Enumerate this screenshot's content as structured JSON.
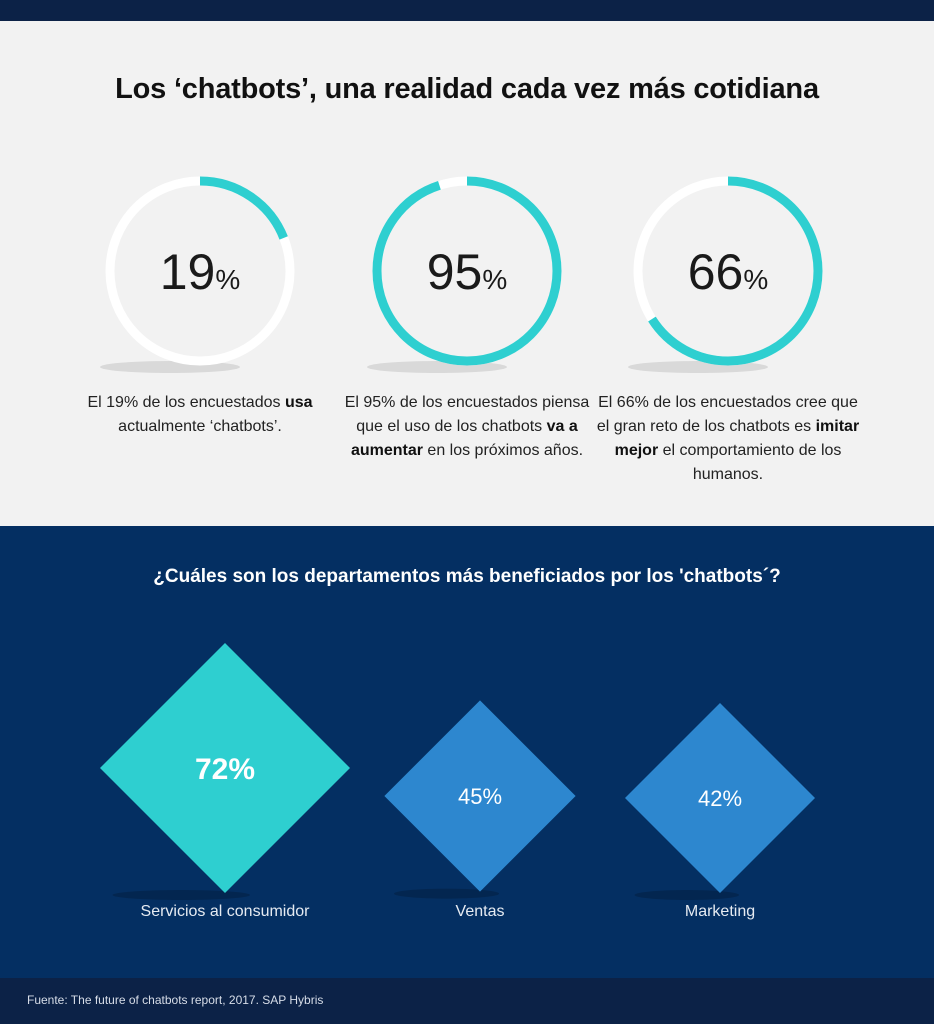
{
  "title": "Los ‘chatbots’, una realidad cada vez más cotidiana",
  "stats": [
    {
      "value_text": "19",
      "percent_sign": "%",
      "desc": [
        "El 19% de los encuestados ",
        {
          "b": "usa"
        },
        " actualmente ‘chatbots’."
      ]
    },
    {
      "value_text": "95",
      "percent_sign": "%",
      "desc": [
        "El 95% de los encuestados piensa que el uso de los chatbots ",
        {
          "b": "va a aumentar"
        },
        " en los próximos años."
      ]
    },
    {
      "value_text": "66",
      "percent_sign": "%",
      "desc": [
        "El 66% de los encuestados cree que el gran reto de los chatbots es ",
        {
          "b": "imitar mejor"
        },
        " el comportamiento de los humanos."
      ]
    }
  ],
  "subtitle": "¿Cuáles son los departamentos más beneficiados por los 'chatbots´?",
  "source": "Fuente: The future of chatbots report, 2017. SAP Hybris",
  "colors": {
    "accent": "#2ecfd0",
    "ring_track": "#ffffff",
    "diamond_secondary": "#2d87cf",
    "dark_navy": "#042f62"
  },
  "chart_data": [
    {
      "type": "donut",
      "series": [
        {
          "values": [
            19,
            95,
            66
          ]
        }
      ],
      "unit": "%"
    },
    {
      "type": "bar",
      "categories": [
        "Servicios al consumidor",
        "Ventas",
        "Marketing"
      ],
      "values": [
        72,
        45,
        42
      ],
      "value_labels": [
        "72%",
        "45%",
        "42%"
      ]
    }
  ]
}
